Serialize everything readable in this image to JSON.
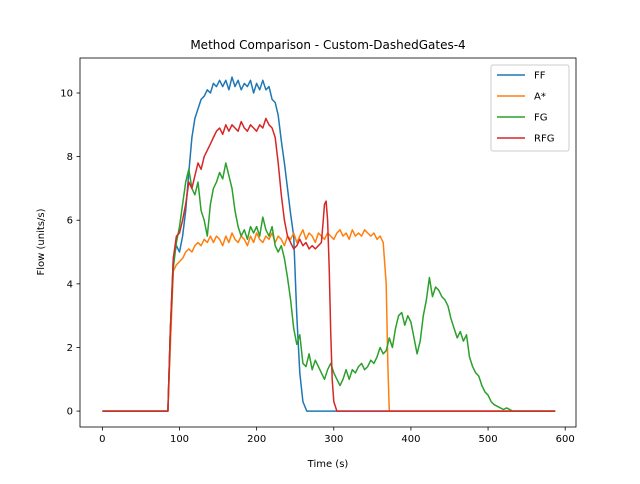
{
  "chart_data": {
    "type": "line",
    "title": "Method Comparison - Custom-DashedGates-4",
    "xlabel": "Time (s)",
    "ylabel": "Flow (units/s)",
    "xlim": [
      -29,
      614
    ],
    "ylim": [
      -0.5,
      11.1
    ],
    "xticks": [
      0,
      100,
      200,
      300,
      400,
      500,
      600
    ],
    "yticks": [
      0,
      2,
      4,
      6,
      8,
      10
    ],
    "grid": false,
    "legend_position": "top-right",
    "series": [
      {
        "name": "FF",
        "color": "#1f77b4",
        "points": [
          [
            0,
            0
          ],
          [
            85,
            0
          ],
          [
            88,
            2.5
          ],
          [
            92,
            4.8
          ],
          [
            96,
            5.2
          ],
          [
            100,
            5.0
          ],
          [
            104,
            5.5
          ],
          [
            108,
            6.3
          ],
          [
            112,
            7.5
          ],
          [
            116,
            8.6
          ],
          [
            120,
            9.2
          ],
          [
            124,
            9.5
          ],
          [
            128,
            9.8
          ],
          [
            132,
            9.9
          ],
          [
            136,
            10.1
          ],
          [
            140,
            10.0
          ],
          [
            144,
            10.3
          ],
          [
            148,
            10.2
          ],
          [
            152,
            10.4
          ],
          [
            156,
            10.2
          ],
          [
            160,
            10.4
          ],
          [
            164,
            10.1
          ],
          [
            168,
            10.5
          ],
          [
            172,
            10.2
          ],
          [
            176,
            10.4
          ],
          [
            180,
            10.1
          ],
          [
            184,
            10.3
          ],
          [
            188,
            10.2
          ],
          [
            192,
            10.4
          ],
          [
            196,
            10.0
          ],
          [
            200,
            10.3
          ],
          [
            204,
            10.1
          ],
          [
            208,
            10.4
          ],
          [
            212,
            10.1
          ],
          [
            216,
            10.2
          ],
          [
            220,
            9.8
          ],
          [
            224,
            9.7
          ],
          [
            228,
            9.3
          ],
          [
            232,
            8.5
          ],
          [
            236,
            7.8
          ],
          [
            240,
            7.0
          ],
          [
            244,
            6.2
          ],
          [
            248,
            5.5
          ],
          [
            252,
            3.0
          ],
          [
            256,
            1.2
          ],
          [
            260,
            0.3
          ],
          [
            265,
            0
          ],
          [
            300,
            0
          ],
          [
            587,
            0
          ]
        ]
      },
      {
        "name": "A*",
        "color": "#ff7f0e",
        "points": [
          [
            0,
            0
          ],
          [
            85,
            0
          ],
          [
            88,
            2.0
          ],
          [
            92,
            4.4
          ],
          [
            96,
            4.6
          ],
          [
            100,
            4.7
          ],
          [
            104,
            4.8
          ],
          [
            108,
            5.0
          ],
          [
            112,
            5.1
          ],
          [
            116,
            5.0
          ],
          [
            120,
            5.2
          ],
          [
            124,
            5.3
          ],
          [
            128,
            5.2
          ],
          [
            132,
            5.4
          ],
          [
            136,
            5.3
          ],
          [
            140,
            5.5
          ],
          [
            144,
            5.3
          ],
          [
            148,
            5.5
          ],
          [
            152,
            5.4
          ],
          [
            156,
            5.2
          ],
          [
            160,
            5.5
          ],
          [
            164,
            5.3
          ],
          [
            168,
            5.6
          ],
          [
            172,
            5.4
          ],
          [
            176,
            5.3
          ],
          [
            180,
            5.5
          ],
          [
            184,
            5.4
          ],
          [
            188,
            5.2
          ],
          [
            192,
            5.5
          ],
          [
            196,
            5.3
          ],
          [
            200,
            5.6
          ],
          [
            204,
            5.4
          ],
          [
            208,
            5.3
          ],
          [
            212,
            5.5
          ],
          [
            216,
            5.4
          ],
          [
            220,
            5.6
          ],
          [
            224,
            5.3
          ],
          [
            228,
            5.5
          ],
          [
            232,
            5.4
          ],
          [
            236,
            5.2
          ],
          [
            240,
            5.5
          ],
          [
            244,
            5.4
          ],
          [
            248,
            5.6
          ],
          [
            252,
            5.3
          ],
          [
            256,
            5.5
          ],
          [
            260,
            5.7
          ],
          [
            264,
            5.4
          ],
          [
            268,
            5.6
          ],
          [
            272,
            5.5
          ],
          [
            276,
            5.3
          ],
          [
            280,
            5.6
          ],
          [
            284,
            5.5
          ],
          [
            288,
            5.4
          ],
          [
            292,
            5.6
          ],
          [
            296,
            5.5
          ],
          [
            300,
            5.4
          ],
          [
            304,
            5.6
          ],
          [
            308,
            5.7
          ],
          [
            312,
            5.5
          ],
          [
            316,
            5.6
          ],
          [
            320,
            5.4
          ],
          [
            324,
            5.7
          ],
          [
            328,
            5.5
          ],
          [
            332,
            5.6
          ],
          [
            336,
            5.5
          ],
          [
            340,
            5.7
          ],
          [
            344,
            5.6
          ],
          [
            348,
            5.5
          ],
          [
            352,
            5.6
          ],
          [
            356,
            5.4
          ],
          [
            360,
            5.5
          ],
          [
            364,
            5.3
          ],
          [
            368,
            4.0
          ],
          [
            370,
            1.5
          ],
          [
            372,
            0
          ],
          [
            587,
            0
          ]
        ]
      },
      {
        "name": "FG",
        "color": "#2ca02c",
        "points": [
          [
            0,
            0
          ],
          [
            85,
            0
          ],
          [
            88,
            2.5
          ],
          [
            92,
            4.5
          ],
          [
            96,
            5.3
          ],
          [
            100,
            5.8
          ],
          [
            104,
            6.5
          ],
          [
            108,
            7.2
          ],
          [
            112,
            7.6
          ],
          [
            116,
            7.0
          ],
          [
            120,
            6.8
          ],
          [
            124,
            7.2
          ],
          [
            128,
            6.3
          ],
          [
            132,
            6.0
          ],
          [
            136,
            5.5
          ],
          [
            140,
            6.5
          ],
          [
            144,
            7.0
          ],
          [
            148,
            7.2
          ],
          [
            152,
            7.5
          ],
          [
            156,
            7.3
          ],
          [
            160,
            7.8
          ],
          [
            164,
            7.4
          ],
          [
            168,
            7.0
          ],
          [
            172,
            6.3
          ],
          [
            176,
            5.8
          ],
          [
            180,
            5.5
          ],
          [
            184,
            5.7
          ],
          [
            188,
            5.4
          ],
          [
            192,
            5.8
          ],
          [
            196,
            5.6
          ],
          [
            200,
            5.8
          ],
          [
            204,
            5.5
          ],
          [
            208,
            6.1
          ],
          [
            212,
            5.7
          ],
          [
            216,
            5.5
          ],
          [
            220,
            5.8
          ],
          [
            224,
            5.2
          ],
          [
            228,
            5.0
          ],
          [
            232,
            5.2
          ],
          [
            236,
            4.8
          ],
          [
            240,
            4.2
          ],
          [
            244,
            3.5
          ],
          [
            248,
            2.6
          ],
          [
            252,
            2.1
          ],
          [
            256,
            2.4
          ],
          [
            260,
            1.5
          ],
          [
            264,
            1.4
          ],
          [
            268,
            1.8
          ],
          [
            272,
            1.3
          ],
          [
            276,
            1.6
          ],
          [
            280,
            1.4
          ],
          [
            284,
            1.2
          ],
          [
            288,
            1.0
          ],
          [
            292,
            1.3
          ],
          [
            296,
            1.5
          ],
          [
            300,
            1.2
          ],
          [
            304,
            1.0
          ],
          [
            308,
            0.8
          ],
          [
            312,
            1.0
          ],
          [
            316,
            1.3
          ],
          [
            320,
            1.0
          ],
          [
            324,
            1.3
          ],
          [
            328,
            1.2
          ],
          [
            332,
            1.4
          ],
          [
            336,
            1.5
          ],
          [
            340,
            1.3
          ],
          [
            344,
            1.4
          ],
          [
            348,
            1.6
          ],
          [
            352,
            1.5
          ],
          [
            356,
            1.7
          ],
          [
            360,
            2.0
          ],
          [
            364,
            1.8
          ],
          [
            368,
            1.9
          ],
          [
            372,
            2.3
          ],
          [
            376,
            2.0
          ],
          [
            380,
            2.6
          ],
          [
            384,
            3.0
          ],
          [
            388,
            3.1
          ],
          [
            392,
            2.7
          ],
          [
            396,
            3.0
          ],
          [
            400,
            2.8
          ],
          [
            404,
            2.3
          ],
          [
            408,
            1.8
          ],
          [
            412,
            2.2
          ],
          [
            416,
            3.0
          ],
          [
            420,
            3.5
          ],
          [
            424,
            4.2
          ],
          [
            428,
            3.6
          ],
          [
            432,
            3.9
          ],
          [
            436,
            3.8
          ],
          [
            440,
            3.6
          ],
          [
            444,
            3.5
          ],
          [
            448,
            3.3
          ],
          [
            452,
            2.9
          ],
          [
            456,
            2.6
          ],
          [
            460,
            2.3
          ],
          [
            464,
            2.5
          ],
          [
            468,
            2.2
          ],
          [
            472,
            2.4
          ],
          [
            476,
            1.7
          ],
          [
            480,
            1.4
          ],
          [
            484,
            1.2
          ],
          [
            488,
            1.1
          ],
          [
            492,
            0.8
          ],
          [
            496,
            0.6
          ],
          [
            500,
            0.5
          ],
          [
            504,
            0.3
          ],
          [
            508,
            0.2
          ],
          [
            512,
            0.15
          ],
          [
            516,
            0.1
          ],
          [
            520,
            0.05
          ],
          [
            524,
            0.1
          ],
          [
            528,
            0.05
          ],
          [
            532,
            0
          ],
          [
            540,
            0
          ],
          [
            587,
            0
          ]
        ]
      },
      {
        "name": "RFG",
        "color": "#d62728",
        "points": [
          [
            0,
            0
          ],
          [
            85,
            0
          ],
          [
            88,
            2.5
          ],
          [
            92,
            4.8
          ],
          [
            96,
            5.5
          ],
          [
            100,
            5.6
          ],
          [
            104,
            6.0
          ],
          [
            108,
            6.5
          ],
          [
            112,
            7.2
          ],
          [
            116,
            7.0
          ],
          [
            120,
            7.4
          ],
          [
            124,
            7.8
          ],
          [
            128,
            7.6
          ],
          [
            132,
            8.0
          ],
          [
            136,
            8.2
          ],
          [
            140,
            8.4
          ],
          [
            144,
            8.6
          ],
          [
            148,
            8.8
          ],
          [
            152,
            8.9
          ],
          [
            156,
            8.7
          ],
          [
            160,
            9.0
          ],
          [
            164,
            8.8
          ],
          [
            168,
            9.0
          ],
          [
            172,
            8.9
          ],
          [
            176,
            8.8
          ],
          [
            180,
            9.1
          ],
          [
            184,
            8.9
          ],
          [
            188,
            8.8
          ],
          [
            192,
            9.0
          ],
          [
            196,
            8.9
          ],
          [
            200,
            8.8
          ],
          [
            204,
            9.0
          ],
          [
            208,
            8.9
          ],
          [
            212,
            9.2
          ],
          [
            216,
            9.0
          ],
          [
            220,
            8.9
          ],
          [
            224,
            8.6
          ],
          [
            228,
            7.8
          ],
          [
            232,
            6.8
          ],
          [
            236,
            6.0
          ],
          [
            240,
            5.5
          ],
          [
            244,
            5.3
          ],
          [
            248,
            5.1
          ],
          [
            252,
            5.2
          ],
          [
            256,
            5.4
          ],
          [
            260,
            5.2
          ],
          [
            264,
            5.3
          ],
          [
            268,
            5.1
          ],
          [
            272,
            5.2
          ],
          [
            276,
            5.1
          ],
          [
            280,
            5.2
          ],
          [
            284,
            5.3
          ],
          [
            286,
            5.9
          ],
          [
            288,
            6.5
          ],
          [
            290,
            6.6
          ],
          [
            292,
            6.0
          ],
          [
            294,
            4.5
          ],
          [
            296,
            2.5
          ],
          [
            298,
            1.0
          ],
          [
            300,
            0.3
          ],
          [
            304,
            0
          ],
          [
            587,
            0
          ]
        ]
      }
    ]
  }
}
